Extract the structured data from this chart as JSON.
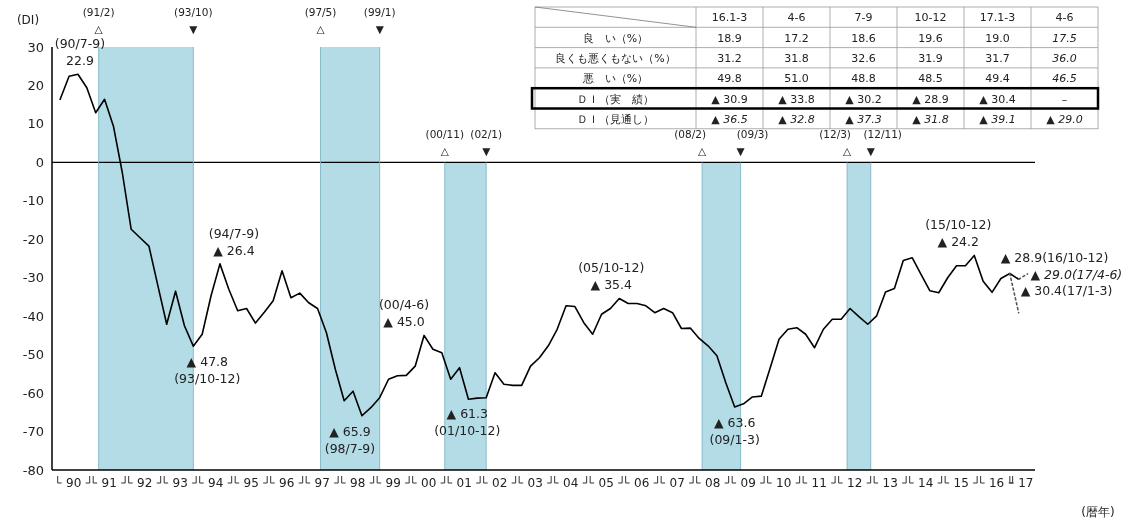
{
  "chart_data": [
    {
      "type": "line",
      "xlabel": "(暦年)",
      "ylabel": "(DI)",
      "xlim": [
        "1989-10-08",
        "2017-06-17"
      ],
      "ylim": [
        -80,
        30
      ],
      "yticks": [
        -80,
        -70,
        -60,
        -50,
        -40,
        -30,
        -20,
        -10,
        0,
        10,
        20,
        30
      ],
      "xticks": [
        {
          "value": "1990-05-18",
          "label": "90"
        },
        {
          "value": "1991-05-18",
          "label": "91"
        },
        {
          "value": "1992-05-18",
          "label": "92"
        },
        {
          "value": "1993-05-18",
          "label": "93"
        },
        {
          "value": "1994-05-18",
          "label": "94"
        },
        {
          "value": "1995-05-18",
          "label": "95"
        },
        {
          "value": "1996-05-18",
          "label": "96"
        },
        {
          "value": "1997-05-18",
          "label": "97"
        },
        {
          "value": "1998-05-18",
          "label": "98"
        },
        {
          "value": "1999-05-18",
          "label": "99"
        },
        {
          "value": "2000-05-18",
          "label": "00"
        },
        {
          "value": "2001-05-18",
          "label": "01"
        },
        {
          "value": "2002-05-18",
          "label": "02"
        },
        {
          "value": "2003-05-18",
          "label": "03"
        },
        {
          "value": "2004-05-18",
          "label": "04"
        },
        {
          "value": "2005-05-18",
          "label": "05"
        },
        {
          "value": "2006-05-18",
          "label": "06"
        },
        {
          "value": "2007-05-18",
          "label": "07"
        },
        {
          "value": "2008-05-18",
          "label": "08"
        },
        {
          "value": "2009-05-18",
          "label": "09"
        },
        {
          "value": "2010-05-18",
          "label": "10"
        },
        {
          "value": "2011-05-18",
          "label": "11"
        },
        {
          "value": "2012-05-18",
          "label": "12"
        },
        {
          "value": "2013-05-18",
          "label": "13"
        },
        {
          "value": "2014-05-18",
          "label": "14"
        },
        {
          "value": "2015-05-18",
          "label": "15"
        },
        {
          "value": "2016-05-18",
          "label": "16"
        },
        {
          "value": "2017-03-14",
          "label": "17"
        }
      ],
      "series": [
        {
          "color": "#000000",
          "x": [
            "1990-01",
            "1990-04",
            "1990-07",
            "1990-10",
            "1991-01",
            "1991-04",
            "1991-07",
            "1991-10",
            "1992-01",
            "1992-04",
            "1992-07",
            "1992-10",
            "1993-01",
            "1993-04",
            "1993-07",
            "1993-10",
            "1994-01",
            "1994-04",
            "1994-07",
            "1994-10",
            "1995-01",
            "1995-04",
            "1995-07",
            "1995-10",
            "1996-01",
            "1996-04",
            "1996-07",
            "1996-10",
            "1997-01",
            "1997-04",
            "1997-07",
            "1997-10",
            "1998-01",
            "1998-04",
            "1998-07",
            "1998-10",
            "1999-01",
            "1999-04",
            "1999-07",
            "1999-10",
            "2000-01",
            "2000-04",
            "2000-07",
            "2000-10",
            "2001-01",
            "2001-04",
            "2001-07",
            "2001-10",
            "2002-01",
            "2002-04",
            "2002-07",
            "2002-10",
            "2003-01",
            "2003-04",
            "2003-07",
            "2003-10",
            "2004-01",
            "2004-04",
            "2004-07",
            "2004-10",
            "2005-01",
            "2005-04",
            "2005-07",
            "2005-10",
            "2006-01",
            "2006-04",
            "2006-07",
            "2006-10",
            "2007-01",
            "2007-04",
            "2007-07",
            "2007-10",
            "2008-01",
            "2008-04",
            "2008-07",
            "2008-10",
            "2009-01",
            "2009-04",
            "2009-07",
            "2009-10",
            "2010-01",
            "2010-04",
            "2010-07",
            "2010-10",
            "2011-01",
            "2011-04",
            "2011-07",
            "2011-10",
            "2012-01",
            "2012-04",
            "2012-07",
            "2012-10",
            "2013-01",
            "2013-04",
            "2013-07",
            "2013-10",
            "2014-01",
            "2014-04",
            "2014-07",
            "2014-10",
            "2015-01",
            "2015-04",
            "2015-07",
            "2015-10",
            "2016-01",
            "2016-04",
            "2016-07",
            "2016-10",
            "2017-01"
          ],
          "values": [
            16.4,
            22.4,
            22.9,
            19.4,
            12.9,
            16.4,
            9.4,
            -2.7,
            -17.4,
            -19.6,
            -21.8,
            -32.0,
            -42.1,
            -33.5,
            -42.5,
            -47.8,
            -44.7,
            -34.7,
            -26.4,
            -33.0,
            -38.6,
            -38.0,
            -41.8,
            -39.0,
            -36.0,
            -28.2,
            -35.2,
            -34.0,
            -36.5,
            -38.0,
            -44.3,
            -53.8,
            -62.0,
            -59.5,
            -65.9,
            -63.8,
            -61.2,
            -56.4,
            -55.5,
            -55.4,
            -53.0,
            -45.0,
            -48.6,
            -49.5,
            -56.4,
            -53.4,
            -61.6,
            -61.3,
            -61.2,
            -54.7,
            -57.7,
            -58.0,
            -58.0,
            -53.0,
            -50.8,
            -47.7,
            -43.4,
            -37.3,
            -37.5,
            -41.7,
            -44.7,
            -39.5,
            -38.0,
            -35.4,
            -36.7,
            -36.7,
            -37.3,
            -39.1,
            -38.0,
            -39.1,
            -43.2,
            -43.1,
            -45.8,
            -47.7,
            -50.3,
            -57.3,
            -63.6,
            -62.8,
            -61.0,
            -60.8,
            -53.5,
            -46.0,
            -43.4,
            -43.0,
            -44.7,
            -48.2,
            -43.4,
            -40.8,
            -40.8,
            -38.0,
            -40.1,
            -42.1,
            -39.9,
            -33.7,
            -32.8,
            -25.5,
            -24.8,
            -29.1,
            -33.4,
            -33.9,
            -30.0,
            -26.9,
            -26.9,
            -24.2,
            -30.9,
            -33.8,
            -30.2,
            -28.9,
            -30.4
          ]
        },
        {
          "color": "#555555",
          "line_style": "dotted",
          "x": [
            "2016-10",
            "2017-01"
          ],
          "values": [
            -28.9,
            -39.1
          ]
        },
        {
          "color": "#555555",
          "line_style": "dotted",
          "x": [
            "2017-01",
            "2017-04"
          ],
          "values": [
            -30.4,
            -29.0
          ]
        }
      ],
      "ref_lines": [
        {
          "axis": "y",
          "value": 0,
          "color": "#000000"
        },
        {
          "axis": "x",
          "value": "1991-02",
          "label": "(91/2)\n△",
          "color": "#7fb5c4"
        },
        {
          "axis": "x",
          "value": "1993-10",
          "label": "(93/10)\n▼",
          "color": "#7fb5c4"
        },
        {
          "axis": "x",
          "value": "1997-05",
          "label": "(97/5)\n△",
          "color": "#7fb5c4"
        },
        {
          "axis": "x",
          "value": "1999-01",
          "label": "(99/1)\n▼",
          "color": "#7fb5c4"
        },
        {
          "axis": "x",
          "value": "2000-11",
          "label": "(00/11)\n△",
          "color": "#7fb5c4"
        },
        {
          "axis": "x",
          "value": "2002-01",
          "label": "(02/1)\n▼",
          "color": "#7fb5c4"
        },
        {
          "axis": "x",
          "value": "2008-02",
          "label": "(08/2)\n△",
          "color": "#7fb5c4"
        },
        {
          "axis": "x",
          "value": "2009-03",
          "label": "(09/3)\n▼",
          "color": "#7fb5c4"
        },
        {
          "axis": "x",
          "value": "2012-03",
          "label": "(12/3)\n△",
          "color": "#7fb5c4"
        },
        {
          "axis": "x",
          "value": "2012-11",
          "label": "(12/11)\n▼",
          "color": "#7fb5c4"
        }
      ],
      "bands": [
        {
          "axis": "x",
          "from": "1991-02",
          "to": "1993-10",
          "color": "#b3dce6"
        },
        {
          "axis": "x",
          "from": "1997-05",
          "to": "1999-01",
          "color": "#b3dce6"
        },
        {
          "axis": "x",
          "from": "2000-11",
          "to": "2002-01",
          "color": "#b3dce6"
        },
        {
          "axis": "x",
          "from": "2008-02",
          "to": "2009-03",
          "color": "#b3dce6"
        },
        {
          "axis": "x",
          "from": "2012-03",
          "to": "2012-11",
          "color": "#b3dce6"
        }
      ],
      "annotations": [
        {
          "text": "(90/7-9)\n22.9",
          "x": "1990-07",
          "y": 22.9
        },
        {
          "text": "▲ 47.8\n(93/10-12)",
          "x": "1993-10",
          "y": -47.8
        },
        {
          "text": "(94/7-9)\n▲ 26.4",
          "x": "1994-07",
          "y": -26.4
        },
        {
          "text": "▲ 65.9\n(98/7-9)",
          "x": "1998-07",
          "y": -65.9
        },
        {
          "text": "(00/4-6)\n▲ 45.0",
          "x": "2000-04",
          "y": -45.0
        },
        {
          "text": "▲ 61.3\n(01/10-12)",
          "x": "2001-10",
          "y": -61.3
        },
        {
          "text": "(05/10-12)\n▲ 35.4",
          "x": "2005-10",
          "y": -35.4
        },
        {
          "text": "▲ 63.6\n(09/1-3)",
          "x": "2009-01",
          "y": -63.6
        },
        {
          "text": "(15/10-12)\n▲ 24.2",
          "x": "2015-10",
          "y": -24.2
        },
        {
          "text": "▲ 28.9(16/10-12)",
          "x": "2016-10",
          "y": -28.9
        },
        {
          "text": "▲ 29.0(17/4-6)",
          "x": "2017-04",
          "y": -29.0
        },
        {
          "text": "▲ 30.4(17/1-3)",
          "x": "2017-01",
          "y": -30.4
        }
      ]
    },
    {
      "type": "other",
      "categories": [
        "16.1-3",
        "4-6",
        "7-9",
        "10-12",
        "17.1-3",
        "4-6"
      ],
      "y_categories": [
        "良　い（%）",
        "良くも悪くもない（%）",
        "悪　い（%）",
        "ＤＩ（実　績）",
        "ＤＩ（見通し）"
      ],
      "cell_labels": [
        [
          "18.9",
          "17.2",
          "18.6",
          "19.6",
          "19.0",
          "17.5"
        ],
        [
          "31.2",
          "31.8",
          "32.6",
          "31.9",
          "31.7",
          "36.0"
        ],
        [
          "49.8",
          "51.0",
          "48.8",
          "48.5",
          "49.4",
          "46.5"
        ],
        [
          "▲ 30.9",
          "▲ 33.8",
          "▲ 30.2",
          "▲ 28.9",
          "▲ 30.4",
          "–"
        ],
        [
          "▲ 36.5",
          "▲ 32.8",
          "▲ 37.3",
          "▲ 31.8",
          "▲ 39.1",
          "▲ 29.0"
        ]
      ]
    }
  ]
}
